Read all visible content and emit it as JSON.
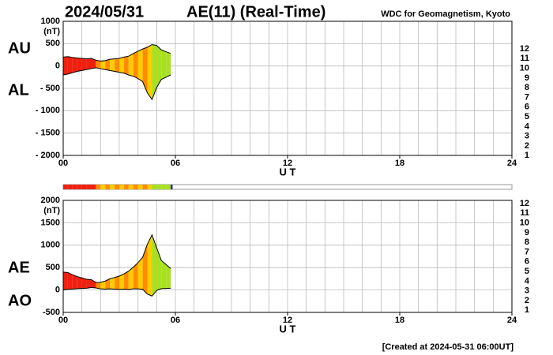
{
  "header": {
    "date": "2024/05/31",
    "title": "AE(11) (Real-Time)",
    "source": "WDC for Geomagnetism, Kyoto"
  },
  "footer": "[Created at 2024-05-31 06:00UT]",
  "chart_data": [
    {
      "type": "band",
      "y_unit": "(nT)",
      "x_label": "U T",
      "x": [
        0,
        0.25,
        0.5,
        0.75,
        1,
        1.25,
        1.5,
        1.75,
        2,
        2.25,
        2.5,
        2.75,
        3,
        3.25,
        3.5,
        3.75,
        4,
        4.25,
        4.5,
        4.75,
        5,
        5.25,
        5.5,
        5.75
      ],
      "series": [
        {
          "name": "AU",
          "values": [
            200,
            210,
            190,
            180,
            170,
            160,
            170,
            130,
            110,
            120,
            150,
            160,
            170,
            200,
            220,
            280,
            330,
            380,
            420,
            480,
            460,
            360,
            320,
            280
          ]
        },
        {
          "name": "AL",
          "values": [
            -200,
            -180,
            -150,
            -120,
            -100,
            -80,
            -60,
            -40,
            -60,
            -80,
            -100,
            -120,
            -140,
            -160,
            -200,
            -230,
            -280,
            -350,
            -600,
            -750,
            -480,
            -300,
            -250,
            -200
          ]
        }
      ],
      "station_counts": [
        11,
        11,
        11,
        11,
        11,
        11,
        11,
        10,
        9,
        10,
        9,
        10,
        9,
        10,
        9,
        10,
        9,
        10,
        9,
        8,
        8,
        8,
        8,
        5
      ],
      "xlim": [
        0,
        24
      ],
      "xticks": [
        {
          "value": 0,
          "label": "00"
        },
        {
          "value": 6,
          "label": "06"
        },
        12,
        18,
        24
      ],
      "ylim": [
        -2000,
        1000
      ],
      "yticks": [
        {
          "value": -2000,
          "label": "- 2000"
        },
        {
          "value": -1500,
          "label": "- 1500"
        },
        {
          "value": -1000,
          "label": "- 1000"
        },
        {
          "value": -500,
          "label": "- 500"
        },
        0,
        500,
        1000
      ],
      "grid": true,
      "legend": [
        {
          "label": 12,
          "color": "#e8266e"
        },
        {
          "label": 11,
          "color": "#f02010"
        },
        {
          "label": 10,
          "color": "#ff8c00"
        },
        {
          "label": 9,
          "color": "#ffcc00"
        },
        {
          "label": 8,
          "color": "#a8e020"
        },
        {
          "label": 7,
          "color": "#20d8e8"
        },
        {
          "label": 6,
          "color": "#1080ff"
        },
        {
          "label": 5,
          "color": "#2020b0"
        },
        {
          "label": 4,
          "color": "#c010c8"
        },
        {
          "label": 3,
          "color": "#000000"
        },
        {
          "label": 2,
          "color": "#606060"
        },
        {
          "label": 1,
          "color": "#c0c0c0"
        }
      ]
    },
    {
      "type": "band",
      "y_unit": "(nT)",
      "x_label": "U T",
      "x": [
        0,
        0.25,
        0.5,
        0.75,
        1,
        1.25,
        1.5,
        1.75,
        2,
        2.25,
        2.5,
        2.75,
        3,
        3.25,
        3.5,
        3.75,
        4,
        4.25,
        4.5,
        4.75,
        5,
        5.25,
        5.5,
        5.75
      ],
      "series": [
        {
          "name": "AE",
          "values": [
            400,
            390,
            340,
            300,
            270,
            240,
            230,
            170,
            170,
            200,
            250,
            280,
            310,
            360,
            420,
            510,
            610,
            730,
            1020,
            1230,
            940,
            660,
            570,
            480
          ]
        },
        {
          "name": "AO",
          "values": [
            0,
            15,
            20,
            30,
            35,
            40,
            55,
            45,
            25,
            20,
            25,
            20,
            15,
            20,
            10,
            25,
            25,
            15,
            -90,
            -135,
            -10,
            30,
            35,
            40
          ]
        }
      ],
      "station_counts": [
        11,
        11,
        11,
        11,
        11,
        11,
        11,
        10,
        9,
        10,
        9,
        10,
        9,
        10,
        9,
        10,
        9,
        10,
        9,
        8,
        8,
        8,
        8,
        5
      ],
      "xlim": [
        0,
        24
      ],
      "xticks": [
        {
          "value": 0,
          "label": "00"
        },
        {
          "value": 6,
          "label": "06"
        },
        12,
        18,
        24
      ],
      "ylim": [
        -500,
        2000
      ],
      "yticks": [
        {
          "value": -500,
          "label": "-500"
        },
        0,
        500,
        1000,
        1500,
        2000
      ],
      "grid": true,
      "legend": [
        {
          "label": 12,
          "color": "#e8266e"
        },
        {
          "label": 11,
          "color": "#f02010"
        },
        {
          "label": 10,
          "color": "#ff8c00"
        },
        {
          "label": 9,
          "color": "#ffcc00"
        },
        {
          "label": 8,
          "color": "#a8e020"
        },
        {
          "label": 7,
          "color": "#20d8e8"
        },
        {
          "label": 6,
          "color": "#1080ff"
        },
        {
          "label": 5,
          "color": "#2020b0"
        },
        {
          "label": 4,
          "color": "#c010c8"
        },
        {
          "label": 3,
          "color": "#000000"
        },
        {
          "label": 2,
          "color": "#606060"
        },
        {
          "label": 1,
          "color": "#c0c0c0"
        }
      ]
    }
  ]
}
